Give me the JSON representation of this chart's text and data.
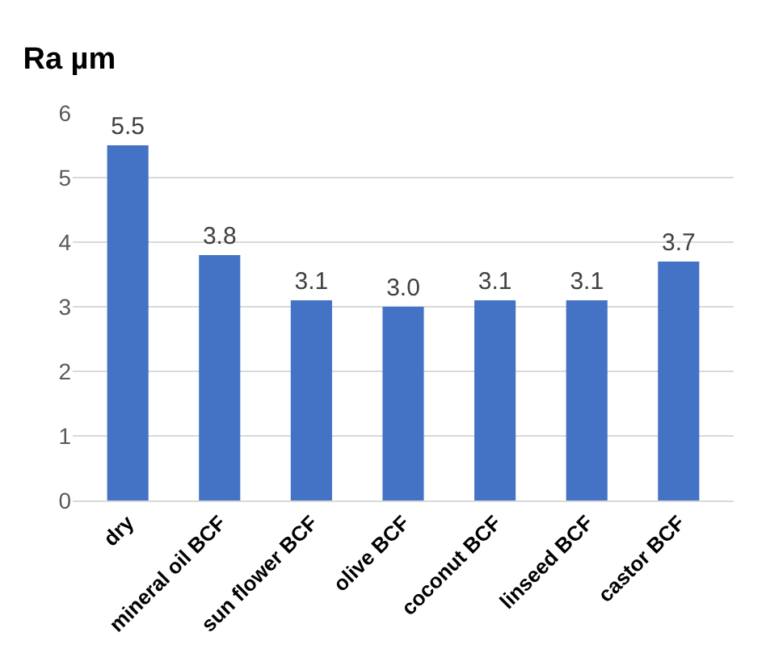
{
  "chart_data": {
    "type": "bar",
    "title": "Ra µm",
    "categories": [
      "dry",
      "mineral oil BCF",
      "sun flower BCF",
      "olive BCF",
      "coconut BCF",
      "linseed BCF",
      "castor BCF"
    ],
    "values": [
      5.5,
      3.8,
      3.1,
      3.0,
      3.1,
      3.1,
      3.7
    ],
    "value_labels": [
      "5.5",
      "3.8",
      "3.1",
      "3.0",
      "3.1",
      "3.1",
      "3.7"
    ],
    "color": "#4472c4",
    "ylim": [
      0,
      6
    ],
    "yticks": [
      0,
      1,
      2,
      3,
      4,
      5,
      6
    ],
    "grid": "y"
  }
}
